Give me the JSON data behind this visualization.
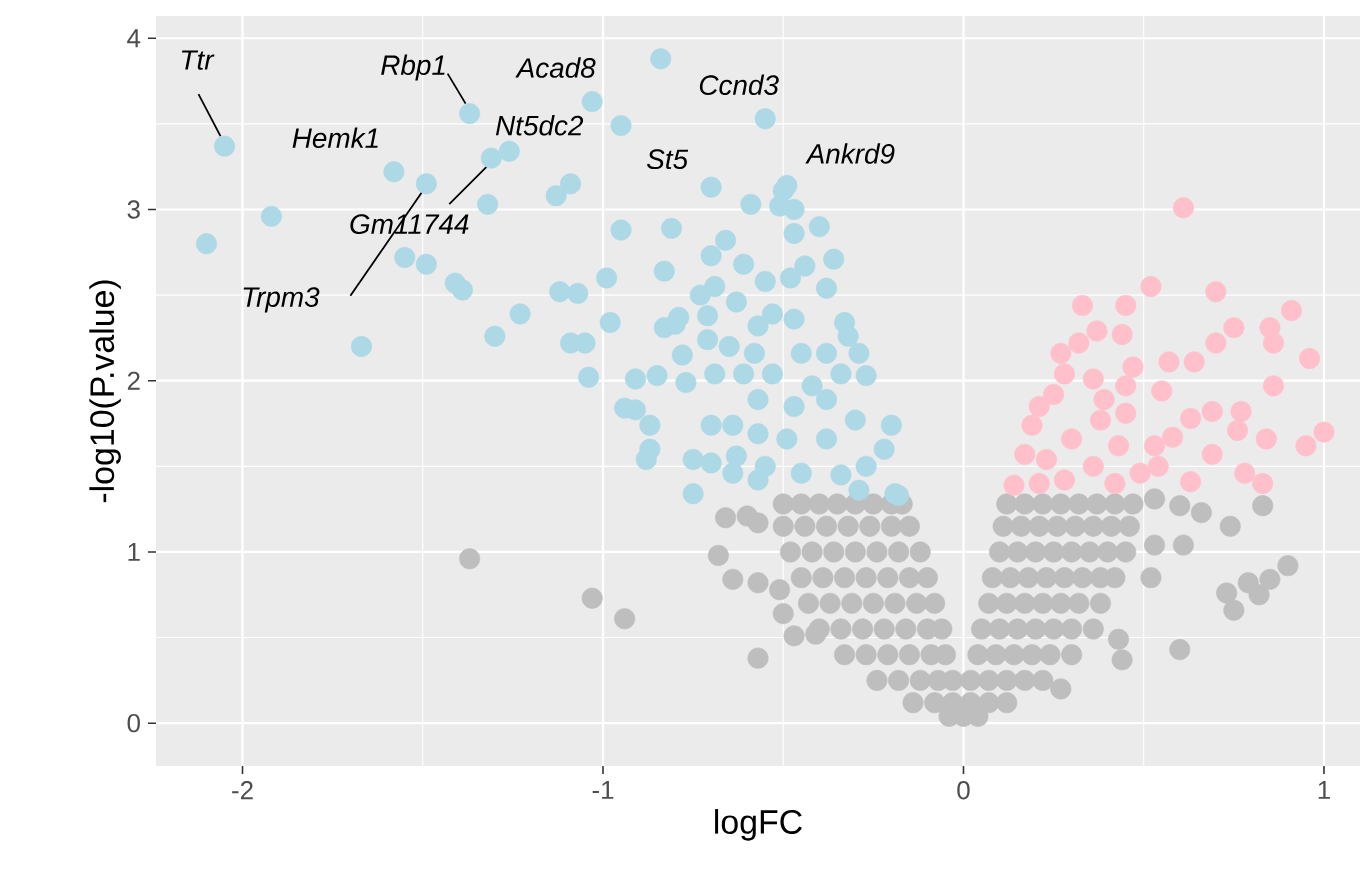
{
  "chart_data": {
    "type": "scatter",
    "xlabel": "logFC",
    "ylabel": "-log10(P.value)",
    "xlim": [
      -2.24,
      1.1
    ],
    "ylim": [
      -0.25,
      4.13
    ],
    "xticks": [
      -2,
      -1,
      0,
      1
    ],
    "yticks": [
      0,
      1,
      2,
      3,
      4
    ],
    "grid": true,
    "marker": "circle",
    "series": [
      {
        "color": "#bebebe",
        "x": [
          -1.03,
          -0.94,
          -0.57,
          -0.68,
          -0.66,
          -0.6,
          -0.57,
          -0.64,
          -0.57,
          -0.51,
          -0.5,
          -0.47,
          -0.41,
          -1.37,
          -0.5,
          -0.45,
          -0.4,
          -0.35,
          -0.3,
          -0.25,
          -0.2,
          -0.17,
          -0.5,
          -0.44,
          -0.38,
          -0.32,
          -0.26,
          -0.2,
          -0.15,
          -0.48,
          -0.42,
          -0.36,
          -0.3,
          -0.24,
          -0.18,
          -0.12,
          -0.45,
          -0.39,
          -0.33,
          -0.27,
          -0.21,
          -0.15,
          -0.1,
          -0.43,
          -0.37,
          -0.31,
          -0.25,
          -0.19,
          -0.13,
          -0.08,
          -0.4,
          -0.34,
          -0.28,
          -0.22,
          -0.16,
          -0.1,
          -0.06,
          -0.33,
          -0.27,
          -0.21,
          -0.15,
          -0.09,
          -0.05,
          -0.24,
          -0.18,
          -0.12,
          -0.07,
          -0.03,
          -0.14,
          -0.08,
          -0.03,
          -0.04,
          0.0,
          0.04,
          0.12,
          0.17,
          0.22,
          0.27,
          0.32,
          0.37,
          0.42,
          0.47,
          0.11,
          0.16,
          0.21,
          0.26,
          0.31,
          0.36,
          0.41,
          0.46,
          0.1,
          0.15,
          0.2,
          0.25,
          0.3,
          0.35,
          0.4,
          0.45,
          0.08,
          0.13,
          0.18,
          0.23,
          0.28,
          0.33,
          0.38,
          0.42,
          0.07,
          0.12,
          0.17,
          0.22,
          0.27,
          0.32,
          0.38,
          0.05,
          0.1,
          0.15,
          0.2,
          0.25,
          0.3,
          0.36,
          0.04,
          0.09,
          0.14,
          0.19,
          0.24,
          0.3,
          0.02,
          0.07,
          0.12,
          0.17,
          0.22,
          0.02,
          0.07,
          0.12,
          0.53,
          0.6,
          0.66,
          0.83,
          0.74,
          0.53,
          0.61,
          0.52,
          0.73,
          0.75,
          0.79,
          0.85,
          0.9,
          0.82,
          0.43,
          0.44,
          0.6,
          0.27
        ],
        "values": [
          0.73,
          0.61,
          0.38,
          0.98,
          1.2,
          1.21,
          1.17,
          0.84,
          0.82,
          0.78,
          0.64,
          0.51,
          0.52,
          0.96,
          1.28,
          1.28,
          1.28,
          1.28,
          1.28,
          1.28,
          1.28,
          1.28,
          1.15,
          1.15,
          1.15,
          1.15,
          1.15,
          1.15,
          1.15,
          1.0,
          1.0,
          1.0,
          1.0,
          1.0,
          1.0,
          1.0,
          0.85,
          0.85,
          0.85,
          0.85,
          0.85,
          0.85,
          0.85,
          0.7,
          0.7,
          0.7,
          0.7,
          0.7,
          0.7,
          0.7,
          0.55,
          0.55,
          0.55,
          0.55,
          0.55,
          0.55,
          0.55,
          0.4,
          0.4,
          0.4,
          0.4,
          0.4,
          0.4,
          0.25,
          0.25,
          0.25,
          0.25,
          0.25,
          0.12,
          0.12,
          0.12,
          0.04,
          0.04,
          0.04,
          1.28,
          1.28,
          1.28,
          1.28,
          1.28,
          1.28,
          1.28,
          1.28,
          1.15,
          1.15,
          1.15,
          1.15,
          1.15,
          1.15,
          1.15,
          1.15,
          1.0,
          1.0,
          1.0,
          1.0,
          1.0,
          1.0,
          1.0,
          1.0,
          0.85,
          0.85,
          0.85,
          0.85,
          0.85,
          0.85,
          0.85,
          0.85,
          0.7,
          0.7,
          0.7,
          0.7,
          0.7,
          0.7,
          0.7,
          0.55,
          0.55,
          0.55,
          0.55,
          0.55,
          0.55,
          0.55,
          0.4,
          0.4,
          0.4,
          0.4,
          0.4,
          0.4,
          0.25,
          0.25,
          0.25,
          0.25,
          0.25,
          0.12,
          0.12,
          0.12,
          1.31,
          1.27,
          1.23,
          1.27,
          1.15,
          1.04,
          1.04,
          0.85,
          0.76,
          0.66,
          0.82,
          0.84,
          0.92,
          0.75,
          0.49,
          0.37,
          0.43,
          0.2
        ]
      },
      {
        "color": "#add8e6",
        "x": [
          -2.1,
          -1.92,
          -2.05,
          -1.58,
          -1.49,
          -1.55,
          -1.49,
          -1.41,
          -1.39,
          -1.67,
          -1.37,
          -1.32,
          -1.31,
          -1.26,
          -1.13,
          -1.09,
          -1.03,
          -0.95,
          -0.84,
          -0.55,
          -0.7,
          -0.59,
          -0.95,
          -0.81,
          -0.66,
          -0.7,
          -0.61,
          -0.83,
          -0.99,
          -1.12,
          -1.07,
          -1.23,
          -0.98,
          -1.3,
          -1.09,
          -1.05,
          -1.04,
          -0.91,
          -0.85,
          -0.8,
          -0.69,
          -0.73,
          -0.91,
          -0.87,
          -0.87,
          -0.88,
          -0.75,
          -0.7,
          -0.75,
          -0.5,
          -0.49,
          -0.51,
          -0.47,
          -0.4,
          -0.47,
          -0.36,
          -0.44,
          -0.48,
          -0.55,
          -0.38,
          -0.63,
          -0.71,
          -0.79,
          -0.83,
          -0.53,
          -0.57,
          -0.47,
          -0.33,
          -0.32,
          -0.29,
          -0.27,
          -0.71,
          -0.65,
          -0.78,
          -0.69,
          -0.61,
          -0.77,
          -0.94,
          -0.7,
          -0.63,
          -0.64,
          -0.57,
          -0.47,
          -0.38,
          -0.3,
          -0.2,
          -0.22,
          -0.27,
          -0.38,
          -0.49,
          -0.55,
          -0.45,
          -0.34,
          -0.57,
          -0.64,
          -0.53,
          -0.42,
          -0.34,
          -0.57,
          -0.45,
          -0.38,
          -0.58,
          -0.19,
          -0.29,
          -0.18
        ],
        "values": [
          2.8,
          2.96,
          3.37,
          3.22,
          3.15,
          2.72,
          2.68,
          2.57,
          2.53,
          2.2,
          3.56,
          3.03,
          3.3,
          3.34,
          3.08,
          3.15,
          3.63,
          3.49,
          3.88,
          3.53,
          3.13,
          3.03,
          2.88,
          2.89,
          2.82,
          2.73,
          2.68,
          2.64,
          2.6,
          2.52,
          2.51,
          2.39,
          2.34,
          2.26,
          2.22,
          2.22,
          2.02,
          2.01,
          2.03,
          2.33,
          2.55,
          2.5,
          1.83,
          1.74,
          1.6,
          1.54,
          1.54,
          1.74,
          1.34,
          3.11,
          3.14,
          3.02,
          3.0,
          2.9,
          2.86,
          2.71,
          2.67,
          2.6,
          2.58,
          2.54,
          2.46,
          2.38,
          2.37,
          2.31,
          2.39,
          2.32,
          2.36,
          2.34,
          2.26,
          2.16,
          2.03,
          2.24,
          2.2,
          2.15,
          2.04,
          2.04,
          1.99,
          1.84,
          1.52,
          1.56,
          1.74,
          1.69,
          1.85,
          1.89,
          1.77,
          1.74,
          1.6,
          1.5,
          1.66,
          1.66,
          1.5,
          1.46,
          1.45,
          1.42,
          1.46,
          2.04,
          1.97,
          2.04,
          1.89,
          2.16,
          2.16,
          2.16,
          1.34,
          1.36,
          1.33
        ]
      },
      {
        "color": "#ffc0cb",
        "x": [
          0.61,
          0.52,
          0.7,
          0.33,
          0.45,
          0.91,
          0.75,
          0.85,
          0.86,
          0.7,
          0.64,
          0.57,
          0.96,
          0.27,
          0.37,
          0.44,
          0.32,
          0.47,
          0.55,
          0.86,
          0.25,
          0.36,
          0.63,
          0.69,
          0.77,
          0.76,
          1.0,
          0.95,
          0.84,
          0.69,
          0.58,
          0.53,
          0.78,
          0.83,
          0.63,
          0.19,
          0.17,
          0.23,
          0.3,
          0.38,
          0.45,
          0.43,
          0.36,
          0.28,
          0.49,
          0.39,
          0.28,
          0.21,
          0.45,
          0.54,
          0.42,
          0.21,
          0.14
        ],
        "values": [
          3.01,
          2.55,
          2.52,
          2.44,
          2.44,
          2.41,
          2.31,
          2.31,
          2.22,
          2.22,
          2.11,
          2.11,
          2.13,
          2.16,
          2.29,
          2.27,
          2.22,
          2.08,
          1.94,
          1.97,
          1.92,
          2.01,
          1.78,
          1.82,
          1.82,
          1.71,
          1.7,
          1.62,
          1.66,
          1.57,
          1.67,
          1.62,
          1.46,
          1.4,
          1.41,
          1.74,
          1.57,
          1.54,
          1.66,
          1.77,
          1.81,
          1.62,
          1.5,
          1.42,
          1.46,
          1.89,
          2.04,
          1.85,
          1.97,
          1.5,
          1.4,
          1.4,
          1.39
        ]
      }
    ],
    "annotations": [
      {
        "text": "Ttr",
        "x": -2.05,
        "y": 3.37
      },
      {
        "text": "Rbp1",
        "x": -1.37,
        "y": 3.56
      },
      {
        "text": "Acad8",
        "x": -1.03,
        "y": 3.63
      },
      {
        "text": "Ccnd3",
        "x": -0.84,
        "y": 3.88
      },
      {
        "text": "Hemk1",
        "x": -1.58,
        "y": 3.22
      },
      {
        "text": "Nt5dc2",
        "x": -1.26,
        "y": 3.34
      },
      {
        "text": "St5",
        "x": -0.7,
        "y": 3.13
      },
      {
        "text": "Ankrd9",
        "x": -0.49,
        "y": 3.14
      },
      {
        "text": "Gm11744",
        "x": -1.31,
        "y": 3.3
      },
      {
        "text": "Trpm3",
        "x": -1.49,
        "y": 3.15
      }
    ]
  }
}
